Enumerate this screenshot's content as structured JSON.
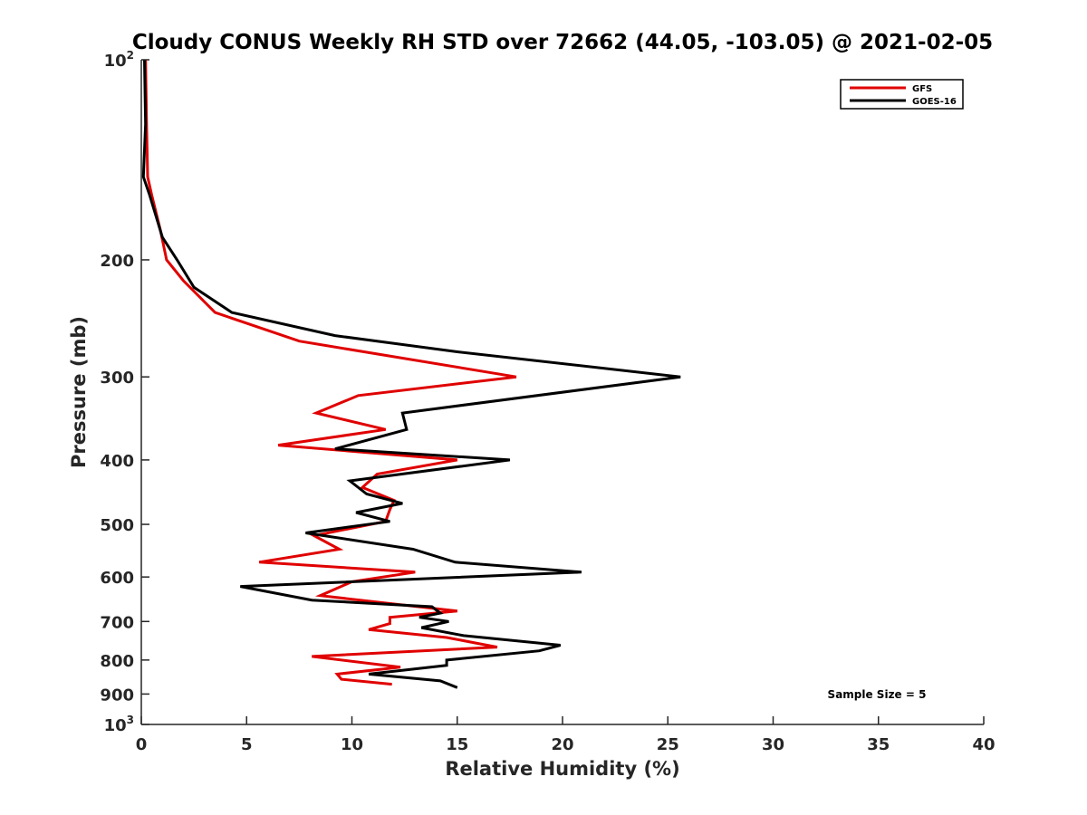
{
  "chart_data": {
    "type": "line",
    "title": "Cloudy CONUS Weekly RH STD over 72662 (44.05, -103.05) @ 2021-02-05",
    "xlabel": "Relative Humidity (%)",
    "ylabel": "Pressure (mb)",
    "xlim": [
      0,
      40
    ],
    "ylim": [
      100,
      1000
    ],
    "y_scale": "log",
    "y_reversed": true,
    "grid": false,
    "legend_position": "top-right",
    "x_ticks": [
      0,
      5,
      10,
      15,
      20,
      25,
      30,
      35,
      40
    ],
    "y_ticks": [
      {
        "value": 100,
        "base": "10",
        "exp": "2"
      },
      {
        "value": 200,
        "label": "200"
      },
      {
        "value": 300,
        "label": "300"
      },
      {
        "value": 400,
        "label": "400"
      },
      {
        "value": 500,
        "label": "500"
      },
      {
        "value": 600,
        "label": "600"
      },
      {
        "value": 700,
        "label": "700"
      },
      {
        "value": 800,
        "label": "800"
      },
      {
        "value": 900,
        "label": "900"
      },
      {
        "value": 1000,
        "base": "10",
        "exp": "3"
      }
    ],
    "annotation": "Sample Size = 5",
    "series": [
      {
        "name": "GFS",
        "color": "#e00000",
        "points": [
          [
            0.2,
            100
          ],
          [
            0.25,
            125
          ],
          [
            0.3,
            150
          ],
          [
            0.5,
            160
          ],
          [
            0.9,
            180
          ],
          [
            1.2,
            200
          ],
          [
            2.0,
            215
          ],
          [
            3.5,
            240
          ],
          [
            7.5,
            265
          ],
          [
            17.8,
            300
          ],
          [
            10.3,
            320
          ],
          [
            8.3,
            340
          ],
          [
            11.6,
            360
          ],
          [
            6.5,
            380
          ],
          [
            15.0,
            400
          ],
          [
            11.2,
            420
          ],
          [
            10.5,
            440
          ],
          [
            12.0,
            460
          ],
          [
            11.8,
            475
          ],
          [
            11.6,
            495
          ],
          [
            8.2,
            520
          ],
          [
            9.4,
            545
          ],
          [
            5.6,
            570
          ],
          [
            13.0,
            590
          ],
          [
            10.0,
            610
          ],
          [
            8.5,
            640
          ],
          [
            12.2,
            660
          ],
          [
            15.0,
            675
          ],
          [
            11.8,
            690
          ],
          [
            11.8,
            705
          ],
          [
            10.8,
            720
          ],
          [
            14.5,
            740
          ],
          [
            16.9,
            765
          ],
          [
            8.1,
            790
          ],
          [
            12.3,
            820
          ],
          [
            9.3,
            840
          ],
          [
            9.5,
            855
          ],
          [
            11.9,
            870
          ]
        ]
      },
      {
        "name": "GOES-16",
        "color": "#000000",
        "points": [
          [
            0.15,
            100
          ],
          [
            0.2,
            125
          ],
          [
            0.1,
            150
          ],
          [
            0.4,
            160
          ],
          [
            1.0,
            185
          ],
          [
            1.7,
            200
          ],
          [
            2.5,
            220
          ],
          [
            4.3,
            240
          ],
          [
            9.2,
            260
          ],
          [
            15.0,
            275
          ],
          [
            25.6,
            300
          ],
          [
            12.4,
            340
          ],
          [
            12.6,
            360
          ],
          [
            9.2,
            385
          ],
          [
            17.5,
            400
          ],
          [
            9.9,
            430
          ],
          [
            10.7,
            450
          ],
          [
            12.4,
            465
          ],
          [
            10.2,
            480
          ],
          [
            11.8,
            495
          ],
          [
            7.8,
            515
          ],
          [
            12.9,
            545
          ],
          [
            14.9,
            570
          ],
          [
            20.9,
            590
          ],
          [
            4.7,
            620
          ],
          [
            8.1,
            650
          ],
          [
            13.8,
            665
          ],
          [
            14.2,
            680
          ],
          [
            13.2,
            690
          ],
          [
            14.6,
            700
          ],
          [
            13.3,
            715
          ],
          [
            15.3,
            735
          ],
          [
            19.9,
            760
          ],
          [
            18.9,
            775
          ],
          [
            14.5,
            800
          ],
          [
            14.5,
            815
          ],
          [
            10.8,
            840
          ],
          [
            14.2,
            860
          ],
          [
            15.0,
            880
          ]
        ]
      }
    ]
  }
}
